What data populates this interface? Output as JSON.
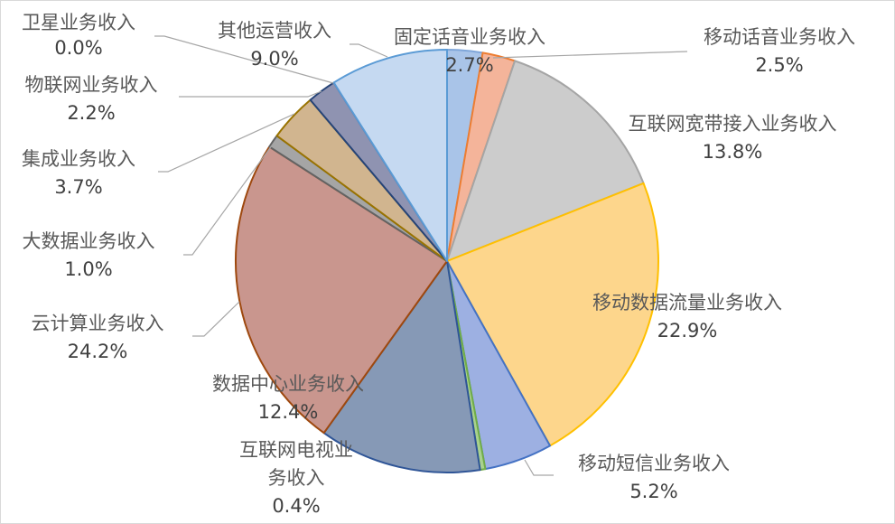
{
  "chart_data": {
    "type": "pie",
    "title": "",
    "legend": "none",
    "slices": [
      {
        "name": "固定话音业务收入",
        "value": 2.7,
        "label": "2.7%",
        "fill": "#a9c4e8",
        "stroke": "#7fa6d9"
      },
      {
        "name": "移动话音业务收入",
        "value": 2.5,
        "label": "2.5%",
        "fill": "#f4b49a",
        "stroke": "#ed7d31"
      },
      {
        "name": "互联网宽带接入业务收入",
        "value": 13.8,
        "label": "13.8%",
        "fill": "#cccccc",
        "stroke": "#a5a5a5"
      },
      {
        "name": "移动数据流量业务收入",
        "value": 22.9,
        "label": "22.9%",
        "fill": "#fdd68c",
        "stroke": "#ffc000"
      },
      {
        "name": "移动短信业务收入",
        "value": 5.2,
        "label": "5.2%",
        "fill": "#9db0e2",
        "stroke": "#4472c4"
      },
      {
        "name": "互联网电视业务收入",
        "value": 0.4,
        "label": "0.4%",
        "fill": "#a9d18e",
        "stroke": "#70ad47"
      },
      {
        "name": "数据中心业务收入",
        "value": 12.4,
        "label": "12.4%",
        "fill": "#8699b6",
        "stroke": "#2f5597"
      },
      {
        "name": "云计算业务收入",
        "value": 24.2,
        "label": "24.2%",
        "fill": "#c9968e",
        "stroke": "#9e480e"
      },
      {
        "name": "大数据业务收入",
        "value": 1.0,
        "label": "1.0%",
        "fill": "#a5a5a5",
        "stroke": "#636363"
      },
      {
        "name": "集成业务收入",
        "value": 3.7,
        "label": "3.7%",
        "fill": "#d1b58f",
        "stroke": "#997300"
      },
      {
        "name": "物联网业务收入",
        "value": 2.2,
        "label": "2.2%",
        "fill": "#8f93b1",
        "stroke": "#264478"
      },
      {
        "name": "卫星业务收入",
        "value": 0.0,
        "label": "0.0%",
        "fill": "#bdd7ee",
        "stroke": "#5b9bd5"
      },
      {
        "name": "其他运营收入",
        "value": 9.0,
        "label": "9.0%",
        "fill": "#c5d9f1",
        "stroke": "#5b9bd5"
      }
    ]
  }
}
